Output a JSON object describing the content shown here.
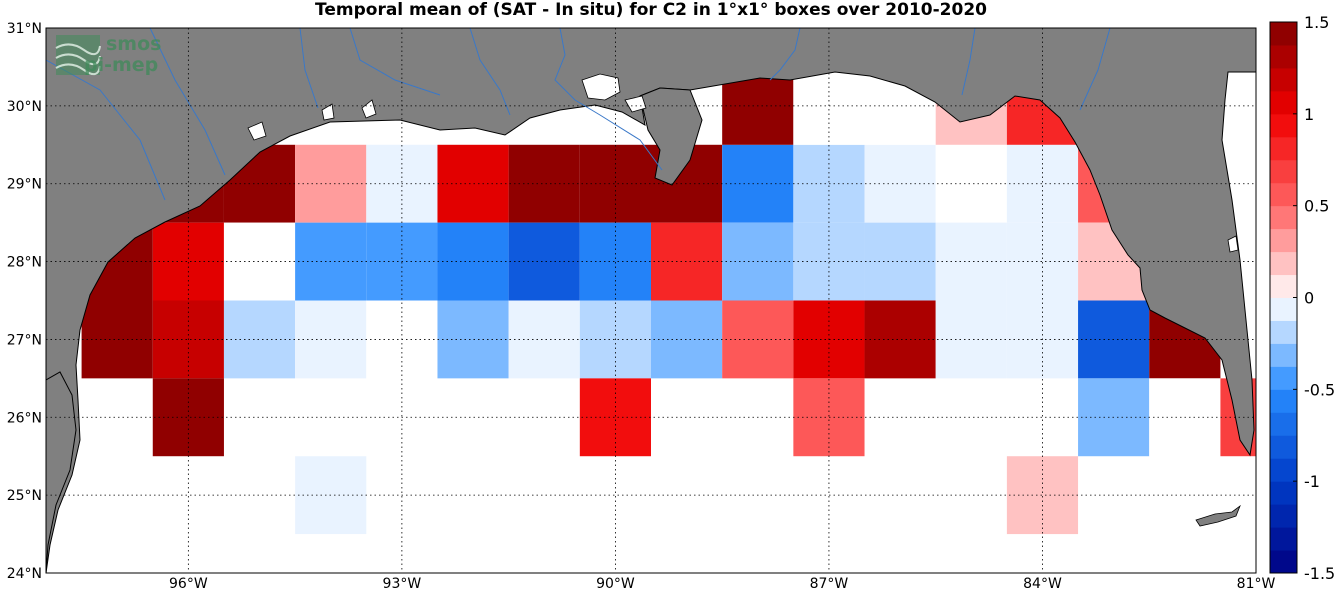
{
  "title": "Temporal mean of (SAT - In situ) for C2 in 1°x1° boxes over 2010-2020",
  "logo": {
    "line1": "smos",
    "line2": "pi-mep",
    "color": "#3f8a5a"
  },
  "colors": {
    "land": "#808080",
    "coast": "#000000",
    "river": "#3a78c8",
    "grid": "#000000"
  },
  "map": {
    "lon_range": [
      -98,
      -81
    ],
    "lat_range": [
      24,
      31
    ],
    "lon_ticks": [
      {
        "value": -96,
        "label": "96°W"
      },
      {
        "value": -93,
        "label": "93°W"
      },
      {
        "value": -90,
        "label": "90°W"
      },
      {
        "value": -87,
        "label": "87°W"
      },
      {
        "value": -84,
        "label": "84°W"
      },
      {
        "value": -81,
        "label": "81°W"
      }
    ],
    "lat_ticks": [
      {
        "value": 24,
        "label": "24°N"
      },
      {
        "value": 25,
        "label": "25°N"
      },
      {
        "value": 26,
        "label": "26°N"
      },
      {
        "value": 27,
        "label": "27°N"
      },
      {
        "value": 28,
        "label": "28°N"
      },
      {
        "value": 29,
        "label": "29°N"
      },
      {
        "value": 30,
        "label": "30°N"
      },
      {
        "value": 31,
        "label": "31°N"
      }
    ]
  },
  "colorbar": {
    "range": [
      -1.5,
      1.5
    ],
    "levels": 24,
    "labels": [
      {
        "value": 1.5,
        "label": "1.5"
      },
      {
        "value": 1.0,
        "label": "1"
      },
      {
        "value": 0.5,
        "label": "0.5"
      },
      {
        "value": 0.0,
        "label": "0"
      },
      {
        "value": -0.5,
        "label": "-0.5"
      },
      {
        "value": -1.0,
        "label": "-1"
      },
      {
        "value": -1.5,
        "label": "-1.5"
      }
    ]
  },
  "chart_data": {
    "type": "heatmap",
    "title": "Temporal mean of (SAT - In situ) for C2 in 1°x1° boxes over 2010-2020",
    "cell_size_deg": 1,
    "value_range": [
      -1.5,
      1.5
    ],
    "cells": [
      {
        "lon": -97,
        "lat": 29,
        "value": 1.5
      },
      {
        "lon": -96,
        "lat": 29,
        "value": 1.5
      },
      {
        "lon": -95,
        "lat": 29,
        "value": 1.5
      },
      {
        "lon": -94,
        "lat": 29,
        "value": 0.3
      },
      {
        "lon": -93,
        "lat": 29,
        "value": -0.1
      },
      {
        "lon": -92,
        "lat": 29,
        "value": 1.1
      },
      {
        "lon": -91,
        "lat": 29,
        "value": 1.5
      },
      {
        "lon": -90,
        "lat": 29,
        "value": 1.5
      },
      {
        "lon": -89,
        "lat": 29,
        "value": 1.5
      },
      {
        "lon": -88,
        "lat": 29,
        "value": -0.6
      },
      {
        "lon": -87,
        "lat": 29,
        "value": -0.2
      },
      {
        "lon": -86,
        "lat": 29,
        "value": -0.1
      },
      {
        "lon": -85,
        "lat": 29,
        "value": 0.0
      },
      {
        "lon": -84,
        "lat": 29,
        "value": -0.1
      },
      {
        "lon": -83,
        "lat": 29,
        "value": 0.5
      },
      {
        "lon": -88,
        "lat": 30,
        "value": 1.5
      },
      {
        "lon": -87,
        "lat": 30,
        "value": 0.0
      },
      {
        "lon": -86,
        "lat": 30,
        "value": 0.0
      },
      {
        "lon": -85,
        "lat": 30,
        "value": 0.2
      },
      {
        "lon": -84,
        "lat": 30,
        "value": 0.8
      },
      {
        "lon": -97,
        "lat": 28,
        "value": 1.5
      },
      {
        "lon": -96,
        "lat": 28,
        "value": 1.0
      },
      {
        "lon": -95,
        "lat": 28,
        "value": 0.0
      },
      {
        "lon": -94,
        "lat": 28,
        "value": -0.5
      },
      {
        "lon": -93,
        "lat": 28,
        "value": -0.4
      },
      {
        "lon": -92,
        "lat": 28,
        "value": -0.6
      },
      {
        "lon": -91,
        "lat": 28,
        "value": -0.8
      },
      {
        "lon": -90,
        "lat": 28,
        "value": -0.6
      },
      {
        "lon": -89,
        "lat": 28,
        "value": 0.8
      },
      {
        "lon": -88,
        "lat": 28,
        "value": -0.3
      },
      {
        "lon": -87,
        "lat": 28,
        "value": -0.2
      },
      {
        "lon": -86,
        "lat": 28,
        "value": -0.2
      },
      {
        "lon": -85,
        "lat": 28,
        "value": -0.1
      },
      {
        "lon": -84,
        "lat": 28,
        "value": -0.1
      },
      {
        "lon": -83,
        "lat": 28,
        "value": 0.2
      },
      {
        "lon": -97,
        "lat": 27,
        "value": 1.5
      },
      {
        "lon": -96,
        "lat": 27,
        "value": 1.2
      },
      {
        "lon": -95,
        "lat": 27,
        "value": -0.2
      },
      {
        "lon": -94,
        "lat": 27,
        "value": -0.1
      },
      {
        "lon": -93,
        "lat": 27,
        "value": 0.0
      },
      {
        "lon": -92,
        "lat": 27,
        "value": -0.3
      },
      {
        "lon": -91,
        "lat": 27,
        "value": -0.1
      },
      {
        "lon": -90,
        "lat": 27,
        "value": -0.2
      },
      {
        "lon": -89,
        "lat": 27,
        "value": -0.3
      },
      {
        "lon": -88,
        "lat": 27,
        "value": 0.5
      },
      {
        "lon": -87,
        "lat": 27,
        "value": 1.1
      },
      {
        "lon": -86,
        "lat": 27,
        "value": 1.3
      },
      {
        "lon": -85,
        "lat": 27,
        "value": -0.1
      },
      {
        "lon": -84,
        "lat": 27,
        "value": -0.1
      },
      {
        "lon": -83,
        "lat": 27,
        "value": -0.8
      },
      {
        "lon": -82,
        "lat": 27,
        "value": 1.5
      },
      {
        "lon": -96,
        "lat": 26,
        "value": 1.5
      },
      {
        "lon": -90,
        "lat": 26,
        "value": 0.9
      },
      {
        "lon": -87,
        "lat": 26,
        "value": 0.6
      },
      {
        "lon": -83,
        "lat": 26,
        "value": -0.3
      },
      {
        "lon": -82,
        "lat": 26,
        "value": 0.0
      },
      {
        "lon": -81,
        "lat": 26,
        "value": 0.7
      },
      {
        "lon": -94,
        "lat": 25,
        "value": -0.1
      },
      {
        "lon": -84,
        "lat": 25,
        "value": 0.2
      }
    ]
  }
}
